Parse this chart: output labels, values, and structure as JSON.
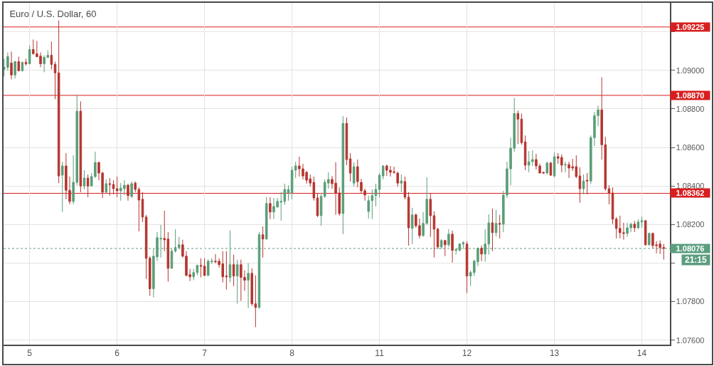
{
  "chart_data": {
    "type": "candlestick",
    "title": "Euro / U.S. Dollar, 60",
    "categories": [
      null,
      null,
      null,
      null,
      null,
      null,
      null,
      "5",
      null,
      null,
      null,
      null,
      null,
      null,
      null,
      null,
      null,
      null,
      null,
      null,
      null,
      null,
      null,
      null,
      null,
      null,
      null,
      null,
      null,
      null,
      null,
      "6",
      null,
      null,
      null,
      null,
      null,
      null,
      null,
      null,
      null,
      null,
      null,
      null,
      null,
      null,
      null,
      null,
      null,
      null,
      null,
      null,
      null,
      null,
      null,
      "7",
      null,
      null,
      null,
      null,
      null,
      null,
      null,
      null,
      null,
      null,
      null,
      null,
      null,
      null,
      null,
      null,
      null,
      null,
      null,
      null,
      null,
      null,
      null,
      "8",
      null,
      null,
      null,
      null,
      null,
      null,
      null,
      null,
      null,
      null,
      null,
      null,
      null,
      null,
      null,
      null,
      null,
      null,
      null,
      null,
      null,
      null,
      null,
      "11",
      null,
      null,
      null,
      null,
      null,
      null,
      null,
      null,
      null,
      null,
      null,
      null,
      null,
      null,
      null,
      null,
      null,
      null,
      null,
      null,
      null,
      null,
      null,
      "12",
      null,
      null,
      null,
      null,
      null,
      null,
      null,
      null,
      null,
      null,
      null,
      null,
      null,
      null,
      null,
      null,
      null,
      null,
      null,
      null,
      null,
      null,
      null,
      "13",
      null,
      null,
      null,
      null,
      null,
      null,
      null,
      null,
      null,
      null,
      null,
      null,
      null,
      null,
      null,
      null,
      null,
      null,
      null,
      null,
      null,
      null,
      null,
      "14",
      null,
      null,
      null,
      null,
      null,
      null
    ],
    "ohlc": [
      [
        1.09005,
        1.0906,
        1.08968,
        1.09016
      ],
      [
        1.09016,
        1.09093,
        1.08998,
        1.09071
      ],
      [
        1.09038,
        1.09097,
        1.08953,
        1.08976
      ],
      [
        1.08976,
        1.09049,
        1.08957,
        1.09045
      ],
      [
        1.09045,
        1.09071,
        1.08994,
        1.08998
      ],
      [
        1.08998,
        1.09045,
        1.08994,
        1.09041
      ],
      [
        1.09041,
        1.0906,
        1.09024,
        1.09034
      ],
      [
        1.09034,
        1.0913,
        1.09031,
        1.09108
      ],
      [
        1.09108,
        1.0916,
        1.09082,
        1.09086
      ],
      [
        1.09086,
        1.09152,
        1.09067,
        1.09071
      ],
      [
        1.09074,
        1.09093,
        1.09016,
        1.09034
      ],
      [
        1.09034,
        1.09078,
        1.0899,
        1.09067
      ],
      [
        1.09067,
        1.09104,
        1.09064,
        1.09078
      ],
      [
        1.09078,
        1.09149,
        1.09005,
        1.09031
      ],
      [
        1.09031,
        1.09045,
        1.0885,
        1.08987
      ],
      [
        1.08987,
        1.09259,
        1.08415,
        1.08452
      ],
      [
        1.08456,
        1.08526,
        1.08265,
        1.08504
      ],
      [
        1.08504,
        1.08571,
        1.08331,
        1.08378
      ],
      [
        1.08378,
        1.08449,
        1.08305,
        1.0832
      ],
      [
        1.0832,
        1.08559,
        1.08305,
        1.08419
      ],
      [
        1.08419,
        1.08872,
        1.08404,
        1.08788
      ],
      [
        1.08788,
        1.08839,
        1.08368,
        1.084
      ],
      [
        1.084,
        1.08482,
        1.08382,
        1.08441
      ],
      [
        1.08441,
        1.0846,
        1.08342,
        1.084
      ],
      [
        1.084,
        1.08467,
        1.08397,
        1.08449
      ],
      [
        1.08449,
        1.08578,
        1.08441,
        1.08522
      ],
      [
        1.08522,
        1.08526,
        1.0843,
        1.08467
      ],
      [
        1.08467,
        1.08474,
        1.08338,
        1.08368
      ],
      [
        1.08368,
        1.08434,
        1.08361,
        1.08412
      ],
      [
        1.08412,
        1.08441,
        1.0835,
        1.08408
      ],
      [
        1.08408,
        1.0843,
        1.08357,
        1.08386
      ],
      [
        1.08386,
        1.08449,
        1.08342,
        1.08375
      ],
      [
        1.08375,
        1.08415,
        1.08324,
        1.08389
      ],
      [
        1.08386,
        1.0843,
        1.08353,
        1.08404
      ],
      [
        1.08404,
        1.08412,
        1.08324,
        1.0835
      ],
      [
        1.08346,
        1.08423,
        1.08338,
        1.08412
      ],
      [
        1.08415,
        1.08423,
        1.08368,
        1.08382
      ],
      [
        1.08382,
        1.08393,
        1.08165,
        1.08327
      ],
      [
        1.08331,
        1.08368,
        1.08213,
        1.08239
      ],
      [
        1.08239,
        1.0825,
        1.07918,
        1.08025
      ],
      [
        1.08025,
        1.08036,
        1.0783,
        1.07867
      ],
      [
        1.07867,
        1.08073,
        1.07822,
        1.08036
      ],
      [
        1.08032,
        1.08161,
        1.0801,
        1.08132
      ],
      [
        1.08125,
        1.08198,
        1.08029,
        1.08128
      ],
      [
        1.08128,
        1.08272,
        1.08062,
        1.08121
      ],
      [
        1.08125,
        1.08161,
        1.07904,
        1.07973
      ],
      [
        1.07973,
        1.08073,
        1.0797,
        1.08062
      ],
      [
        1.08062,
        1.08176,
        1.08055,
        1.08081
      ],
      [
        1.08081,
        1.08136,
        1.08073,
        1.08095
      ],
      [
        1.08095,
        1.08121,
        1.08029,
        1.08036
      ],
      [
        1.08036,
        1.08062,
        1.07933,
        1.07936
      ],
      [
        1.0794,
        1.0797,
        1.07907,
        1.07929
      ],
      [
        1.07929,
        1.0797,
        1.07911,
        1.07951
      ],
      [
        1.07951,
        1.07992,
        1.07936,
        1.07988
      ],
      [
        1.07988,
        1.08025,
        1.07926,
        1.07984
      ],
      [
        1.07984,
        1.08025,
        1.07933,
        1.07936
      ],
      [
        1.07936,
        1.08018,
        1.07933,
        1.0801
      ],
      [
        1.08007,
        1.08025,
        1.07996,
        1.0801
      ],
      [
        1.0801,
        1.08047,
        1.07999,
        1.08007
      ],
      [
        1.0801,
        1.08025,
        1.07977,
        1.07992
      ],
      [
        1.07996,
        1.08062,
        1.079,
        1.07929
      ],
      [
        1.07933,
        1.08062,
        1.07863,
        1.07929
      ],
      [
        1.07926,
        1.08169,
        1.079,
        1.07992
      ],
      [
        1.07992,
        1.08044,
        1.07881,
        1.07933
      ],
      [
        1.07933,
        1.08018,
        1.07789,
        1.07992
      ],
      [
        1.07992,
        1.08018,
        1.07804,
        1.07926
      ],
      [
        1.07926,
        1.07962,
        1.07856,
        1.07911
      ],
      [
        1.07911,
        1.07999,
        1.07767,
        1.07947
      ],
      [
        1.07947,
        1.07973,
        1.07778,
        1.07789
      ],
      [
        1.07789,
        1.07936,
        1.07668,
        1.0777
      ],
      [
        1.0777,
        1.08161,
        1.07763,
        1.08147
      ],
      [
        1.08147,
        1.0819,
        1.08029,
        1.08125
      ],
      [
        1.08125,
        1.08342,
        1.08121,
        1.08309
      ],
      [
        1.08309,
        1.08342,
        1.08228,
        1.08265
      ],
      [
        1.08265,
        1.08338,
        1.08228,
        1.08294
      ],
      [
        1.08291,
        1.08338,
        1.08287,
        1.0832
      ],
      [
        1.08316,
        1.08368,
        1.0822,
        1.0832
      ],
      [
        1.0832,
        1.08412,
        1.08302,
        1.08382
      ],
      [
        1.08364,
        1.08404,
        1.08324,
        1.08382
      ],
      [
        1.08364,
        1.085,
        1.08331,
        1.08482
      ],
      [
        1.08482,
        1.08526,
        1.08441,
        1.08504
      ],
      [
        1.08504,
        1.08552,
        1.08449,
        1.08489
      ],
      [
        1.08489,
        1.08515,
        1.08434,
        1.08452
      ],
      [
        1.08471,
        1.08478,
        1.08412,
        1.0843
      ],
      [
        1.08437,
        1.0846,
        1.08397,
        1.08415
      ],
      [
        1.08419,
        1.08449,
        1.08324,
        1.08338
      ],
      [
        1.08338,
        1.08361,
        1.08239,
        1.08246
      ],
      [
        1.08246,
        1.08357,
        1.08194,
        1.08346
      ],
      [
        1.08346,
        1.08434,
        1.08338,
        1.08419
      ],
      [
        1.08415,
        1.08471,
        1.08386,
        1.08434
      ],
      [
        1.08434,
        1.08452,
        1.08386,
        1.08412
      ],
      [
        1.08415,
        1.08523,
        1.0825,
        1.08364
      ],
      [
        1.08364,
        1.08393,
        1.08246,
        1.08257
      ],
      [
        1.08257,
        1.08762,
        1.0815,
        1.08725
      ],
      [
        1.08725,
        1.08755,
        1.08508,
        1.08537
      ],
      [
        1.08541,
        1.08571,
        1.08423,
        1.08467
      ],
      [
        1.08415,
        1.08523,
        1.08397,
        1.085
      ],
      [
        1.085,
        1.08537,
        1.08393,
        1.08423
      ],
      [
        1.08419,
        1.08437,
        1.08361,
        1.08375
      ],
      [
        1.08375,
        1.08386,
        1.08324,
        1.08353
      ],
      [
        1.08268,
        1.0835,
        1.08231,
        1.08324
      ],
      [
        1.08324,
        1.08382,
        1.08228,
        1.0835
      ],
      [
        1.0835,
        1.08412,
        1.08294,
        1.08382
      ],
      [
        1.08382,
        1.08467,
        1.08342,
        1.08456
      ],
      [
        1.08452,
        1.08508,
        1.08434,
        1.08504
      ],
      [
        1.08504,
        1.08511,
        1.08452,
        1.08482
      ],
      [
        1.08482,
        1.08504,
        1.08449,
        1.08471
      ],
      [
        1.08474,
        1.085,
        1.08463,
        1.08471
      ],
      [
        1.08467,
        1.08474,
        1.08397,
        1.08415
      ],
      [
        1.08415,
        1.0846,
        1.08368,
        1.08426
      ],
      [
        1.08423,
        1.08449,
        1.08331,
        1.08342
      ],
      [
        1.08342,
        1.08368,
        1.08091,
        1.08183
      ],
      [
        1.0818,
        1.08287,
        1.08099,
        1.0825
      ],
      [
        1.0825,
        1.08257,
        1.08183,
        1.08194
      ],
      [
        1.08194,
        1.08231,
        1.08128,
        1.08143
      ],
      [
        1.08143,
        1.08265,
        1.08136,
        1.08206
      ],
      [
        1.08206,
        1.08445,
        1.08198,
        1.08331
      ],
      [
        1.08331,
        1.08361,
        1.08136,
        1.08246
      ],
      [
        1.08246,
        1.08268,
        1.08029,
        1.08176
      ],
      [
        1.08176,
        1.08183,
        1.08073,
        1.08084
      ],
      [
        1.08084,
        1.08125,
        1.08073,
        1.08117
      ],
      [
        1.08117,
        1.08121,
        1.08036,
        1.08095
      ],
      [
        1.08095,
        1.08176,
        1.08084,
        1.0815
      ],
      [
        1.0815,
        1.08169,
        1.08003,
        1.08066
      ],
      [
        1.08066,
        1.08077,
        1.08044,
        1.0807
      ],
      [
        1.08066,
        1.08103,
        1.08062,
        1.08099
      ],
      [
        1.08099,
        1.08114,
        1.08073,
        1.08106
      ],
      [
        1.08099,
        1.08114,
        1.07845,
        1.07933
      ],
      [
        1.07933,
        1.07962,
        1.07881,
        1.07951
      ],
      [
        1.07951,
        1.08018,
        1.07933,
        1.0801
      ],
      [
        1.08007,
        1.08081,
        1.07984,
        1.08077
      ],
      [
        1.08077,
        1.08091,
        1.0801,
        1.08047
      ],
      [
        1.08047,
        1.08176,
        1.08007,
        1.08099
      ],
      [
        1.08099,
        1.08253,
        1.08044,
        1.08209
      ],
      [
        1.08209,
        1.08283,
        1.08062,
        1.08158
      ],
      [
        1.08158,
        1.08276,
        1.08139,
        1.08206
      ],
      [
        1.08206,
        1.0825,
        1.08128,
        1.08202
      ],
      [
        1.08202,
        1.08375,
        1.08161,
        1.08353
      ],
      [
        1.08353,
        1.08526,
        1.08338,
        1.08489
      ],
      [
        1.08489,
        1.08651,
        1.08404,
        1.08596
      ],
      [
        1.08596,
        1.08857,
        1.08578,
        1.08776
      ],
      [
        1.08776,
        1.08791,
        1.08618,
        1.08747
      ],
      [
        1.08747,
        1.08776,
        1.08614,
        1.08625
      ],
      [
        1.08629,
        1.08662,
        1.08482,
        1.08508
      ],
      [
        1.08508,
        1.08581,
        1.08471,
        1.08526
      ],
      [
        1.08526,
        1.08585,
        1.08504,
        1.08537
      ],
      [
        1.08537,
        1.08567,
        1.08485,
        1.08504
      ],
      [
        1.08504,
        1.08515,
        1.08467,
        1.08467
      ],
      [
        1.08471,
        1.08474,
        1.08463,
        1.08467
      ],
      [
        1.08467,
        1.08526,
        1.0846,
        1.08519
      ],
      [
        1.08519,
        1.08526,
        1.08452,
        1.08456
      ],
      [
        1.08452,
        1.08574,
        1.08445,
        1.08552
      ],
      [
        1.08552,
        1.08571,
        1.08515,
        1.08544
      ],
      [
        1.08548,
        1.08563,
        1.08471,
        1.08508
      ],
      [
        1.08508,
        1.08526,
        1.08471,
        1.08511
      ],
      [
        1.08511,
        1.08526,
        1.08441,
        1.08493
      ],
      [
        1.085,
        1.08541,
        1.08478,
        1.08493
      ],
      [
        1.085,
        1.08559,
        1.08441,
        1.08449
      ],
      [
        1.08452,
        1.08497,
        1.08313,
        1.08386
      ],
      [
        1.08386,
        1.0846,
        1.08357,
        1.08426
      ],
      [
        1.0843,
        1.08467,
        1.08357,
        1.08426
      ],
      [
        1.08426,
        1.08662,
        1.08412,
        1.08651
      ],
      [
        1.08651,
        1.08784,
        1.08607,
        1.08765
      ],
      [
        1.08765,
        1.08817,
        1.0871,
        1.08795
      ],
      [
        1.08795,
        1.08964,
        1.08537,
        1.08614
      ],
      [
        1.08614,
        1.08655,
        1.08375,
        1.08386
      ],
      [
        1.08386,
        1.08404,
        1.08305,
        1.08364
      ],
      [
        1.08364,
        1.08393,
        1.08202,
        1.08228
      ],
      [
        1.08228,
        1.08239,
        1.08128,
        1.0818
      ],
      [
        1.0818,
        1.08246,
        1.08128,
        1.08158
      ],
      [
        1.08158,
        1.08209,
        1.08121,
        1.08154
      ],
      [
        1.08154,
        1.08209,
        1.08136,
        1.08183
      ],
      [
        1.08183,
        1.08209,
        1.08161,
        1.08202
      ],
      [
        1.08202,
        1.0822,
        1.08161,
        1.08183
      ],
      [
        1.08183,
        1.08228,
        1.08176,
        1.08213
      ],
      [
        1.08213,
        1.08242,
        1.08183,
        1.0822
      ],
      [
        1.0822,
        1.08224,
        1.08091,
        1.08095
      ],
      [
        1.08095,
        1.08158,
        1.08091,
        1.08154
      ],
      [
        1.08154,
        1.08158,
        1.08077,
        1.08091
      ],
      [
        1.08095,
        1.08114,
        1.08051,
        1.08091
      ],
      [
        1.08099,
        1.08117,
        1.08047,
        1.08081
      ],
      [
        1.08081,
        1.08099,
        1.08018,
        1.08076
      ]
    ],
    "colors": [
      "#5a9e78",
      "#5a9e78",
      "#b5352f",
      "#5a9e78",
      "#b5352f",
      "#5a9e78",
      "#b5352f",
      "#5a9e78",
      "#b5352f",
      "#b5352f",
      "#b5352f",
      "#5a9e78",
      "#5a9e78",
      "#b5352f",
      "#b5352f",
      "#b5352f",
      "#5a9e78",
      "#b5352f",
      "#b5352f",
      "#5a9e78",
      "#5a9e78",
      "#b5352f",
      "#5a9e78",
      "#b5352f",
      "#5a9e78",
      "#5a9e78",
      "#b5352f",
      "#b5352f",
      "#5a9e78",
      "#b5352f",
      "#b5352f",
      "#b5352f",
      "#5a9e78",
      "#5a9e78",
      "#b5352f",
      "#5a9e78",
      "#b5352f",
      "#b5352f",
      "#b5352f",
      "#b5352f",
      "#b5352f",
      "#5a9e78",
      "#5a9e78",
      "#5a9e78",
      "#b5352f",
      "#b5352f",
      "#5a9e78",
      "#5a9e78",
      "#5a9e78",
      "#b5352f",
      "#b5352f",
      "#b5352f",
      "#5a9e78",
      "#5a9e78",
      "#b5352f",
      "#b5352f",
      "#5a9e78",
      "#5a9e78",
      "#b5352f",
      "#b5352f",
      "#b5352f",
      "#b5352f",
      "#5a9e78",
      "#b5352f",
      "#5a9e78",
      "#b5352f",
      "#b5352f",
      "#5a9e78",
      "#b5352f",
      "#b5352f",
      "#5a9e78",
      "#b5352f",
      "#5a9e78",
      "#b5352f",
      "#5a9e78",
      "#5a9e78",
      "#5a9e78",
      "#5a9e78",
      "#5a9e78",
      "#5a9e78",
      "#5a9e78",
      "#b5352f",
      "#b5352f",
      "#b5352f",
      "#b5352f",
      "#b5352f",
      "#b5352f",
      "#5a9e78",
      "#5a9e78",
      "#5a9e78",
      "#b5352f",
      "#b5352f",
      "#b5352f",
      "#5a9e78",
      "#b5352f",
      "#b5352f",
      "#5a9e78",
      "#b5352f",
      "#b5352f",
      "#b5352f",
      "#5a9e78",
      "#5a9e78",
      "#5a9e78",
      "#5a9e78",
      "#5a9e78",
      "#b5352f",
      "#b5352f",
      "#b5352f",
      "#b5352f",
      "#5a9e78",
      "#b5352f",
      "#b5352f",
      "#5a9e78",
      "#b5352f",
      "#b5352f",
      "#5a9e78",
      "#5a9e78",
      "#b5352f",
      "#b5352f",
      "#b5352f",
      "#5a9e78",
      "#b5352f",
      "#5a9e78",
      "#b5352f",
      "#5a9e78",
      "#5a9e78",
      "#5a9e78",
      "#b5352f",
      "#5a9e78",
      "#5a9e78",
      "#5a9e78",
      "#b5352f",
      "#5a9e78",
      "#5a9e78",
      "#b5352f",
      "#5a9e78",
      "#b5352f",
      "#5a9e78",
      "#5a9e78",
      "#5a9e78",
      "#5a9e78",
      "#b5352f",
      "#b5352f",
      "#b5352f",
      "#5a9e78",
      "#5a9e78",
      "#b5352f",
      "#b5352f",
      "#b5352f",
      "#5a9e78",
      "#b5352f",
      "#5a9e78",
      "#b5352f",
      "#b5352f",
      "#5a9e78",
      "#b5352f",
      "#b5352f",
      "#b5352f",
      "#b5352f",
      "#5a9e78",
      "#b5352f",
      "#5a9e78",
      "#5a9e78",
      "#5a9e78",
      "#b5352f",
      "#b5352f",
      "#b5352f",
      "#b5352f",
      "#b5352f",
      "#b5352f",
      "#b5352f",
      "#5a9e78",
      "#5a9e78",
      "#b5352f",
      "#5a9e78",
      "#5a9e78",
      "#b5352f",
      "#5a9e78",
      "#b5352f",
      "#b5352f",
      "#b5352f",
      "#b5352f"
    ],
    "ylim": [
      1.07577,
      1.0935
    ],
    "yticks": [
      {
        "value": 1.076,
        "label": "1.07600"
      },
      {
        "value": 1.078,
        "label": "1.07800"
      },
      {
        "value": 1.08,
        "label": null
      },
      {
        "value": 1.082,
        "label": "1.08200"
      },
      {
        "value": 1.084,
        "label": "1.08400"
      },
      {
        "value": 1.086,
        "label": "1.08600"
      },
      {
        "value": 1.088,
        "label": "1.08800"
      },
      {
        "value": 1.09,
        "label": "1.09000"
      },
      {
        "value": 1.092,
        "label": null
      }
    ],
    "grid": true,
    "ref_lines": [
      {
        "axis": "y",
        "value": 1.09225,
        "label": "1.09225",
        "color": "#d81e1e"
      },
      {
        "axis": "y",
        "value": 1.0887,
        "label": "1.08870",
        "color": "#d81e1e"
      },
      {
        "axis": "y",
        "value": 1.08362,
        "label": "1.08362",
        "color": "#d81e1e"
      },
      {
        "axis": "y",
        "value": 1.08076,
        "label": "1.08076",
        "color": "#5b9e7f",
        "line_style": "dotted"
      }
    ],
    "annotations": [
      "21:15"
    ]
  }
}
